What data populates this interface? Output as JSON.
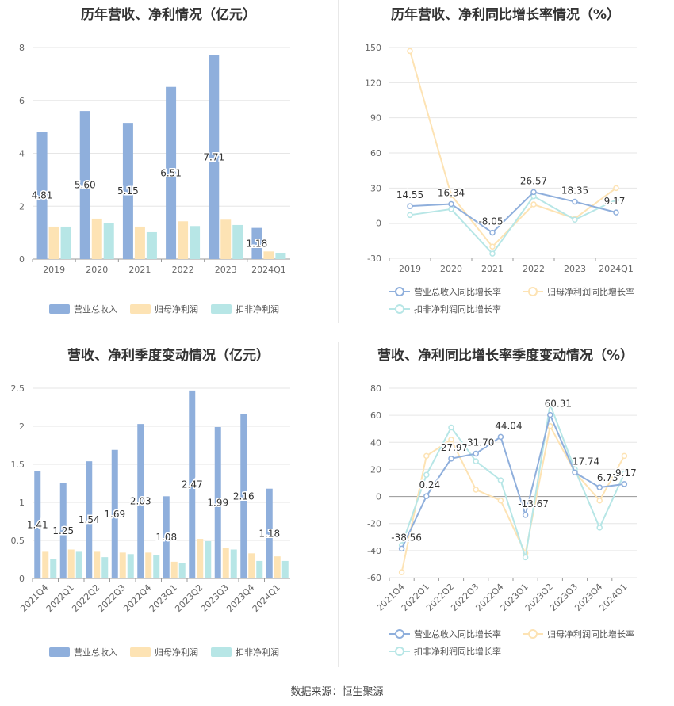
{
  "source_text": "数据来源：恒生聚源",
  "colors": {
    "revenue": "#8fafdc",
    "net": "#fde3b4",
    "deducted": "#b7e6e6",
    "l_revenue": "#8fafdc",
    "l_net": "#fde3b4",
    "l_deducted": "#b7e6e6",
    "axis": "#666666",
    "grid": "#e6e6e6",
    "label": "#333333"
  },
  "chart_data": [
    {
      "type": "bar",
      "title": "历年营收、净利情况（亿元）",
      "categories": [
        "2019",
        "2020",
        "2021",
        "2022",
        "2023",
        "2024Q1"
      ],
      "ylim": [
        0,
        8
      ],
      "yticks": [
        0,
        2,
        4,
        6,
        8
      ],
      "series": [
        {
          "name": "营业总收入",
          "values": [
            4.81,
            5.6,
            5.15,
            6.51,
            7.71,
            1.18
          ]
        },
        {
          "name": "归母净利润",
          "values": [
            1.23,
            1.53,
            1.23,
            1.43,
            1.49,
            0.29
          ]
        },
        {
          "name": "扣非净利润",
          "values": [
            1.23,
            1.37,
            1.02,
            1.25,
            1.29,
            0.24
          ]
        }
      ],
      "data_labels": [
        "4.81",
        "5.60",
        "5.15",
        "6.51",
        "7.71",
        "1.18"
      ],
      "legend": "bottom"
    },
    {
      "type": "line",
      "title": "历年营收、净利同比增长率情况（%）",
      "categories": [
        "2019",
        "2020",
        "2021",
        "2022",
        "2023",
        "2024Q1"
      ],
      "ylim": [
        -30,
        150
      ],
      "yticks": [
        -30,
        0,
        30,
        60,
        90,
        120,
        150
      ],
      "series": [
        {
          "name": "营业总收入同比增长率",
          "values": [
            14.55,
            16.34,
            -8.05,
            26.57,
            18.35,
            9.17
          ]
        },
        {
          "name": "归母净利润同比增长率",
          "values": [
            147,
            24,
            -20,
            16,
            4,
            30
          ]
        },
        {
          "name": "扣非净利润同比增长率",
          "values": [
            7,
            12,
            -26,
            23,
            3,
            20
          ]
        }
      ],
      "data_labels": [
        "14.55",
        "16.34",
        "-8.05",
        "26.57",
        "18.35",
        "9.17"
      ],
      "legend": "bottom"
    },
    {
      "type": "bar",
      "title": "营收、净利季度变动情况（亿元）",
      "categories": [
        "2021Q4",
        "2022Q1",
        "2022Q2",
        "2022Q3",
        "2022Q4",
        "2023Q1",
        "2023Q2",
        "2023Q3",
        "2023Q4",
        "2024Q1"
      ],
      "ylim": [
        0,
        2.5
      ],
      "yticks": [
        0,
        0.5,
        1,
        1.5,
        2,
        2.5
      ],
      "series": [
        {
          "name": "营业总收入",
          "values": [
            1.41,
            1.25,
            1.54,
            1.69,
            2.03,
            1.08,
            2.47,
            1.99,
            2.16,
            1.18
          ]
        },
        {
          "name": "归母净利润",
          "values": [
            0.35,
            0.38,
            0.35,
            0.34,
            0.34,
            0.22,
            0.52,
            0.4,
            0.33,
            0.29
          ]
        },
        {
          "name": "扣非净利润",
          "values": [
            0.26,
            0.35,
            0.28,
            0.32,
            0.31,
            0.2,
            0.49,
            0.38,
            0.23,
            0.23
          ]
        }
      ],
      "data_labels": [
        "1.41",
        "1.25",
        "1.54",
        "1.69",
        "2.03",
        "1.08",
        "2.47",
        "1.99",
        "2.16",
        "1.18"
      ],
      "legend": "bottom"
    },
    {
      "type": "line",
      "title": "营收、净利同比增长率季度变动情况（%）",
      "categories": [
        "2021Q4",
        "2022Q1",
        "2022Q2",
        "2022Q3",
        "2022Q4",
        "2023Q1",
        "2023Q2",
        "2023Q3",
        "2023Q4",
        "2024Q1"
      ],
      "ylim": [
        -60,
        80
      ],
      "yticks": [
        -60,
        -40,
        -20,
        0,
        20,
        40,
        60,
        80
      ],
      "series": [
        {
          "name": "营业总收入同比增长率",
          "values": [
            -38.56,
            0.24,
            27.97,
            31.7,
            44.04,
            -13.67,
            60.31,
            17.74,
            6.73,
            9.17
          ]
        },
        {
          "name": "归母净利润同比增长率",
          "values": [
            -56,
            30,
            42,
            5,
            -3,
            -42,
            52,
            18,
            -3,
            30
          ]
        },
        {
          "name": "扣非净利润同比增长率",
          "values": [
            -36,
            16,
            51,
            26,
            12,
            -45,
            68,
            20,
            -23,
            17
          ]
        }
      ],
      "data_labels": [
        "-38.56",
        "0.24",
        "27.97",
        "31.70",
        "44.04",
        "-13.67",
        "60.31",
        "17.74",
        "6.73",
        "9.17"
      ],
      "legend": "bottom"
    }
  ]
}
